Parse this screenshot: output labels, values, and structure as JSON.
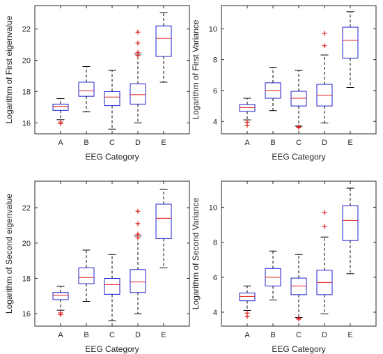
{
  "chart_data": [
    {
      "type": "box",
      "xlabel": "EEG Category",
      "ylabel": "Logarithm of First eigenvalue",
      "ylim": [
        15.3,
        23.5
      ],
      "yticks": [
        16,
        18,
        20,
        22
      ],
      "categories": [
        "A",
        "B",
        "C",
        "D",
        "E"
      ],
      "boxes": [
        {
          "category": "A",
          "whisker_low": 16.2,
          "q1": 16.8,
          "median": 17.05,
          "q3": 17.2,
          "whisker_high": 17.55,
          "outliers": [
            16.05,
            15.95
          ]
        },
        {
          "category": "B",
          "whisker_low": 16.7,
          "q1": 17.7,
          "median": 18.05,
          "q3": 18.6,
          "whisker_high": 19.6,
          "outliers": []
        },
        {
          "category": "C",
          "whisker_low": 15.6,
          "q1": 17.1,
          "median": 17.65,
          "q3": 18.0,
          "whisker_high": 19.35,
          "outliers": []
        },
        {
          "category": "D",
          "whisker_low": 16.0,
          "q1": 17.2,
          "median": 17.8,
          "q3": 18.5,
          "whisker_high": 20.4,
          "outliers": [
            21.8,
            21.1,
            20.5,
            20.3
          ]
        },
        {
          "category": "E",
          "whisker_low": 18.6,
          "q1": 20.25,
          "median": 21.4,
          "q3": 22.2,
          "whisker_high": 23.05,
          "outliers": []
        }
      ]
    },
    {
      "type": "box",
      "xlabel": "EEG Category",
      "ylabel": "Logarithm of First Variance",
      "ylim": [
        3.2,
        11.5
      ],
      "yticks": [
        4,
        6,
        8,
        10
      ],
      "categories": [
        "A",
        "B",
        "C",
        "D",
        "E"
      ],
      "boxes": [
        {
          "category": "A",
          "whisker_low": 4.1,
          "q1": 4.65,
          "median": 4.9,
          "q3": 5.1,
          "whisker_high": 5.5,
          "outliers": [
            3.95,
            3.75
          ]
        },
        {
          "category": "B",
          "whisker_low": 4.7,
          "q1": 5.5,
          "median": 6.0,
          "q3": 6.5,
          "whisker_high": 7.5,
          "outliers": []
        },
        {
          "category": "C",
          "whisker_low": 3.7,
          "q1": 5.0,
          "median": 5.5,
          "q3": 5.95,
          "whisker_high": 7.3,
          "outliers": [
            3.65,
            3.6
          ]
        },
        {
          "category": "D",
          "whisker_low": 3.9,
          "q1": 5.0,
          "median": 5.7,
          "q3": 6.4,
          "whisker_high": 8.3,
          "outliers": [
            9.7,
            8.9
          ]
        },
        {
          "category": "E",
          "whisker_low": 6.2,
          "q1": 8.1,
          "median": 9.25,
          "q3": 10.1,
          "whisker_high": 11.1,
          "outliers": []
        }
      ]
    },
    {
      "type": "box",
      "xlabel": "EEG Category",
      "ylabel": "Logarithm of Second eigenvalue",
      "ylim": [
        15.3,
        23.5
      ],
      "yticks": [
        16,
        18,
        20,
        22
      ],
      "categories": [
        "A",
        "B",
        "C",
        "D",
        "E"
      ],
      "boxes": [
        {
          "category": "A",
          "whisker_low": 16.2,
          "q1": 16.8,
          "median": 17.05,
          "q3": 17.2,
          "whisker_high": 17.55,
          "outliers": [
            16.05,
            15.95
          ]
        },
        {
          "category": "B",
          "whisker_low": 16.7,
          "q1": 17.7,
          "median": 18.05,
          "q3": 18.6,
          "whisker_high": 19.6,
          "outliers": []
        },
        {
          "category": "C",
          "whisker_low": 15.6,
          "q1": 17.1,
          "median": 17.65,
          "q3": 18.0,
          "whisker_high": 19.35,
          "outliers": []
        },
        {
          "category": "D",
          "whisker_low": 16.0,
          "q1": 17.2,
          "median": 17.8,
          "q3": 18.5,
          "whisker_high": 20.4,
          "outliers": [
            21.8,
            21.1,
            20.5,
            20.3
          ]
        },
        {
          "category": "E",
          "whisker_low": 18.6,
          "q1": 20.25,
          "median": 21.4,
          "q3": 22.2,
          "whisker_high": 23.05,
          "outliers": []
        }
      ]
    },
    {
      "type": "box",
      "xlabel": "EEG Category",
      "ylabel": "Logarithm of Second Variance",
      "ylim": [
        3.2,
        11.5
      ],
      "yticks": [
        4,
        6,
        8,
        10
      ],
      "categories": [
        "A",
        "B",
        "C",
        "D",
        "E"
      ],
      "boxes": [
        {
          "category": "A",
          "whisker_low": 4.1,
          "q1": 4.65,
          "median": 4.9,
          "q3": 5.1,
          "whisker_high": 5.5,
          "outliers": [
            3.95,
            3.75
          ]
        },
        {
          "category": "B",
          "whisker_low": 4.7,
          "q1": 5.5,
          "median": 6.0,
          "q3": 6.5,
          "whisker_high": 7.5,
          "outliers": []
        },
        {
          "category": "C",
          "whisker_low": 3.7,
          "q1": 5.0,
          "median": 5.5,
          "q3": 5.95,
          "whisker_high": 7.3,
          "outliers": [
            3.65,
            3.6
          ]
        },
        {
          "category": "D",
          "whisker_low": 3.9,
          "q1": 5.0,
          "median": 5.7,
          "q3": 6.4,
          "whisker_high": 8.3,
          "outliers": [
            9.7,
            8.9
          ]
        },
        {
          "category": "E",
          "whisker_low": 6.2,
          "q1": 8.1,
          "median": 9.25,
          "q3": 10.1,
          "whisker_high": 11.1,
          "outliers": []
        }
      ]
    }
  ],
  "colors": {
    "box": "#1f1fd0",
    "median": "#e01b1b",
    "outlier": "#e01b1b",
    "whisker": "#000000",
    "axis": "#262626"
  }
}
